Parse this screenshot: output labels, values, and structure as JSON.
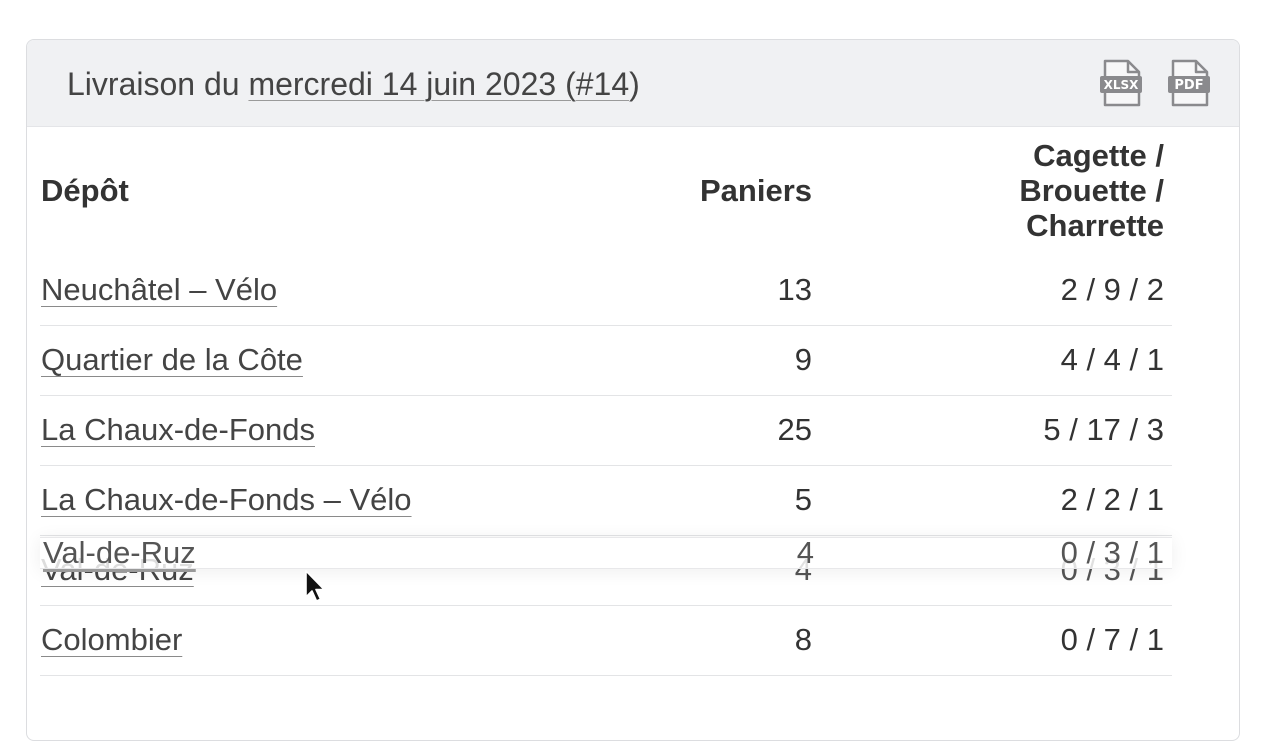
{
  "header": {
    "title_prefix": "Livraison du ",
    "title_link": "mercredi 14 juin 2023 (#14",
    "title_suffix": ")",
    "xlsx_label": "XLSX",
    "pdf_label": "PDF"
  },
  "table": {
    "columns": {
      "depot": "Dépôt",
      "paniers": "Paniers",
      "cagette_line1": "Cagette /",
      "cagette_line2": "Brouette /",
      "cagette_line3": "Charrette"
    },
    "rows": [
      {
        "depot": "Neuchâtel – Vélo",
        "paniers": "13",
        "cagette": "2 / 9 / 2"
      },
      {
        "depot": "Quartier de la Côte",
        "paniers": "9",
        "cagette": "4 / 4 / 1"
      },
      {
        "depot": "La Chaux-de-Fonds",
        "paniers": "25",
        "cagette": "5 / 17 / 3"
      },
      {
        "depot": "La Chaux-de-Fonds – Vélo",
        "paniers": "5",
        "cagette": "2 / 2 / 1"
      },
      {
        "depot": "Val-de-Ruz",
        "paniers": "4",
        "cagette": "0 / 3 / 1"
      },
      {
        "depot": "Colombier",
        "paniers": "8",
        "cagette": "0 / 7 / 1"
      }
    ]
  },
  "drag_ghost": {
    "depot": "Val-de-Ruz",
    "paniers": "4",
    "cagette": "0 / 3 / 1"
  },
  "icons": {
    "xlsx": "xlsx-file-icon",
    "pdf": "pdf-file-icon",
    "cursor": "mouse-pointer-icon"
  },
  "colors": {
    "header_bg": "#f0f1f3",
    "text": "#333333",
    "border": "#dcdde0"
  }
}
